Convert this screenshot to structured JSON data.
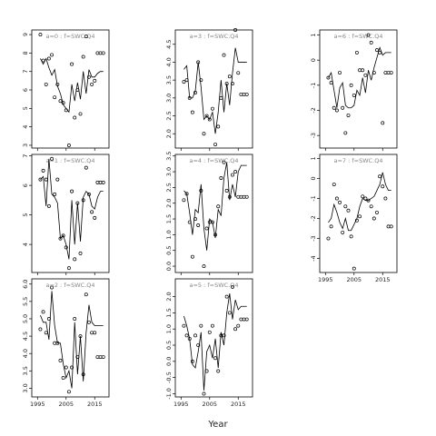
{
  "chart_data": {
    "type": "line",
    "xlabel": "Year",
    "ylabel": "",
    "colors": {
      "line": "#000000",
      "point": "#000000",
      "frame": "#000000",
      "title": "#888888"
    },
    "marker": "open-circle",
    "xlim": [
      1993,
      2020
    ],
    "xticks": [
      1995,
      2005,
      2015
    ],
    "xtick_labels": [
      "1995",
      "2005",
      "2015"
    ],
    "panels": [
      {
        "title": "a=0 : f=SWC.Q4",
        "ylim": [
          2.85,
          9.25
        ],
        "yticks": [
          3,
          4,
          5,
          6,
          7,
          8,
          9
        ],
        "ytick_labels": [
          "3",
          "4",
          "5",
          "6",
          "7",
          "8",
          "9"
        ],
        "line_x": [
          1996,
          1997,
          1998,
          1999,
          2000,
          2001,
          2002,
          2003,
          2004,
          2005,
          2006,
          2007,
          2008,
          2009,
          2010,
          2011,
          2012,
          2013,
          2014,
          2015,
          2016,
          2017,
          2018
        ],
        "line_y": [
          7.7,
          7.4,
          7.7,
          7.2,
          6.8,
          7.1,
          6.2,
          5.8,
          5.2,
          5.0,
          4.8,
          6.3,
          5.4,
          6.4,
          5.5,
          7.0,
          5.8,
          7.1,
          6.7,
          6.7,
          6.9,
          7.0,
          7.0
        ],
        "points_x": [
          1996,
          1997,
          1998,
          1999,
          2000,
          2001,
          2002,
          2003,
          2004,
          2005,
          2006,
          2007,
          2008,
          2009,
          2010,
          2011,
          2012,
          2013,
          2014,
          2015,
          2016,
          2017,
          2018
        ],
        "points_y": [
          9.0,
          7.6,
          6.3,
          7.7,
          7.9,
          5.6,
          6.3,
          5.4,
          5.3,
          4.9,
          3.0,
          7.4,
          4.5,
          6.0,
          4.7,
          7.8,
          8.9,
          6.7,
          6.3,
          6.5,
          8.0,
          8.0,
          8.0
        ]
      },
      {
        "title": "a=1 : f=SWC.Q4",
        "ylim": [
          3.05,
          7.05
        ],
        "yticks": [
          4,
          5,
          6,
          7
        ],
        "ytick_labels": [
          "4",
          "5",
          "6",
          "7"
        ],
        "line_x": [
          1996,
          1997,
          1998,
          1999,
          2000,
          2001,
          2002,
          2003,
          2004,
          2005,
          2006,
          2007,
          2008,
          2009,
          2010,
          2011,
          2012,
          2013,
          2014,
          2015,
          2016,
          2017,
          2018
        ],
        "line_y": [
          6.2,
          6.3,
          5.3,
          6.9,
          5.7,
          5.6,
          5.4,
          4.2,
          4.3,
          4.0,
          3.5,
          5.5,
          4.0,
          5.4,
          4.1,
          5.6,
          5.8,
          5.7,
          5.3,
          5.2,
          5.6,
          5.8,
          5.8
        ],
        "points_x": [
          1996,
          1997,
          1998,
          1999,
          2000,
          2001,
          2002,
          2003,
          2004,
          2005,
          2006,
          2007,
          2008,
          2009,
          2010,
          2011,
          2012,
          2013,
          2014,
          2015,
          2016,
          2017,
          2018
        ],
        "points_y": [
          6.2,
          6.5,
          6.2,
          5.3,
          6.9,
          5.7,
          6.2,
          4.2,
          4.3,
          3.9,
          3.2,
          5.8,
          3.5,
          5.4,
          3.7,
          5.5,
          6.6,
          5.7,
          5.1,
          4.9,
          6.1,
          6.1,
          6.1
        ]
      },
      {
        "title": "a=2 : f=SWC.Q4",
        "ylim": [
          2.75,
          6.15
        ],
        "yticks": [
          3.0,
          3.5,
          4.0,
          4.5,
          5.0,
          5.5,
          6.0
        ],
        "ytick_labels": [
          "3.0",
          "3.5",
          "4.0",
          "4.5",
          "5.0",
          "5.5",
          "6.0"
        ],
        "line_x": [
          1996,
          1997,
          1998,
          1999,
          2000,
          2001,
          2002,
          2003,
          2004,
          2005,
          2006,
          2007,
          2008,
          2009,
          2010,
          2011,
          2012,
          2013,
          2014,
          2015,
          2016,
          2017,
          2018
        ],
        "line_y": [
          5.1,
          4.9,
          4.9,
          4.4,
          5.8,
          4.8,
          4.3,
          4.3,
          3.7,
          3.3,
          3.5,
          3.0,
          4.9,
          3.4,
          4.5,
          3.2,
          4.6,
          5.4,
          4.9,
          4.8,
          4.8,
          4.8,
          4.8
        ],
        "points_x": [
          1996,
          1997,
          1998,
          1999,
          2000,
          2001,
          2002,
          2003,
          2004,
          2005,
          2006,
          2007,
          2008,
          2009,
          2010,
          2011,
          2012,
          2013,
          2014,
          2015,
          2016,
          2017,
          2018
        ],
        "points_y": [
          4.7,
          5.2,
          4.6,
          5.0,
          5.9,
          4.3,
          4.3,
          3.8,
          3.3,
          3.6,
          2.9,
          3.6,
          5.0,
          3.9,
          4.5,
          3.4,
          5.7,
          4.9,
          4.6,
          4.6,
          3.9,
          3.9,
          3.9
        ]
      },
      {
        "title": "a=3 : f=SWC.Q4",
        "ylim": [
          1.6,
          4.9
        ],
        "yticks": [
          2.0,
          2.5,
          3.0,
          3.5,
          4.0,
          4.5
        ],
        "ytick_labels": [
          "2.0",
          "2.5",
          "3.0",
          "3.5",
          "4.0",
          "4.5"
        ],
        "line_x": [
          1996,
          1997,
          1998,
          1999,
          2000,
          2001,
          2002,
          2003,
          2004,
          2005,
          2006,
          2007,
          2008,
          2009,
          2010,
          2011,
          2012,
          2013,
          2014,
          2015,
          2016,
          2017,
          2018
        ],
        "line_y": [
          3.8,
          3.9,
          3.0,
          3.0,
          3.2,
          4.0,
          3.3,
          2.4,
          2.5,
          2.4,
          2.6,
          2.0,
          2.6,
          3.5,
          2.6,
          3.4,
          2.8,
          3.7,
          4.4,
          4.0,
          4.0,
          4.0,
          4.0
        ],
        "points_x": [
          1996,
          1997,
          1998,
          1999,
          2000,
          2001,
          2002,
          2003,
          2004,
          2005,
          2006,
          2007,
          2008,
          2009,
          2010,
          2011,
          2012,
          2013,
          2014,
          2015,
          2016,
          2017,
          2018
        ],
        "points_y": [
          3.45,
          3.5,
          3.0,
          2.6,
          3.15,
          4.0,
          3.5,
          2.0,
          2.5,
          2.4,
          2.7,
          1.7,
          2.2,
          3.0,
          4.2,
          3.4,
          3.6,
          3.4,
          4.9,
          3.7,
          3.1,
          3.1,
          3.1
        ]
      },
      {
        "title": "a=4 : f=SWC.Q4",
        "ylim": [
          -0.2,
          3.55
        ],
        "yticks": [
          0.0,
          0.5,
          1.0,
          1.5,
          2.0,
          2.5,
          3.0,
          3.5
        ],
        "ytick_labels": [
          "0.0",
          "0.5",
          "1.0",
          "1.5",
          "2.0",
          "2.5",
          "3.0",
          "3.5"
        ],
        "line_x": [
          1996,
          1997,
          1998,
          1999,
          2000,
          2001,
          2002,
          2003,
          2004,
          2005,
          2006,
          2007,
          2008,
          2009,
          2010,
          2011,
          2012,
          2013,
          2014,
          2015,
          2016,
          2017,
          2018
        ],
        "line_y": [
          2.4,
          2.3,
          1.7,
          1.0,
          1.8,
          1.7,
          2.6,
          1.2,
          0.5,
          1.5,
          1.4,
          0.9,
          1.8,
          1.6,
          2.8,
          3.3,
          2.1,
          2.6,
          2.2,
          3.0,
          3.2,
          3.2,
          3.2
        ],
        "points_x": [
          1996,
          1997,
          1998,
          1999,
          2000,
          2001,
          2002,
          2003,
          2004,
          2005,
          2006,
          2007,
          2008,
          2009,
          2010,
          2011,
          2012,
          2013,
          2014,
          2015,
          2016,
          2017,
          2018
        ],
        "points_y": [
          2.1,
          2.3,
          1.4,
          0.3,
          1.5,
          1.3,
          2.4,
          0.0,
          1.2,
          1.4,
          1.4,
          1.0,
          1.9,
          2.8,
          3.3,
          2.4,
          2.2,
          2.9,
          3.0,
          2.2,
          2.2,
          2.2,
          2.2
        ]
      },
      {
        "title": "a=5 : f=SWC.Q4",
        "ylim": [
          -1.1,
          2.55
        ],
        "yticks": [
          -1.0,
          -0.5,
          0.0,
          0.5,
          1.0,
          1.5,
          2.0
        ],
        "ytick_labels": [
          "-1.0",
          "-0.5",
          "0.0",
          "0.5",
          "1.0",
          "1.5",
          "2.0"
        ],
        "line_x": [
          1996,
          1997,
          1998,
          1999,
          2000,
          2001,
          2002,
          2003,
          2004,
          2005,
          2006,
          2007,
          2008,
          2009,
          2010,
          2011,
          2012,
          2013,
          2014,
          2015,
          2016,
          2017,
          2018
        ],
        "line_y": [
          1.4,
          1.1,
          0.7,
          -0.1,
          -0.2,
          0.3,
          0.9,
          -0.9,
          0.3,
          0.5,
          0.1,
          0.7,
          -0.2,
          0.9,
          0.5,
          1.5,
          2.1,
          1.3,
          1.9,
          1.6,
          1.7,
          1.7,
          1.7
        ],
        "points_x": [
          1996,
          1997,
          1998,
          1999,
          2000,
          2001,
          2002,
          2003,
          2004,
          2005,
          2006,
          2007,
          2008,
          2009,
          2010,
          2011,
          2012,
          2013,
          2014,
          2015,
          2016,
          2017,
          2018
        ],
        "points_y": [
          1.1,
          0.8,
          0.7,
          0.0,
          0.8,
          0.5,
          1.1,
          -1.0,
          -0.3,
          0.9,
          1.1,
          0.1,
          -0.3,
          0.8,
          0.8,
          2.0,
          1.5,
          2.3,
          1.0,
          1.1,
          1.3,
          1.3,
          1.3
        ]
      },
      {
        "title": "a=6 : f=SWC.Q4",
        "ylim": [
          -3.5,
          1.2
        ],
        "yticks": [
          -3,
          -2,
          -1,
          0,
          1
        ],
        "ytick_labels": [
          "-3",
          "-2",
          "-1",
          "0",
          "1"
        ],
        "line_x": [
          1996,
          1997,
          1998,
          1999,
          2000,
          2001,
          2002,
          2003,
          2004,
          2005,
          2006,
          2007,
          2008,
          2009,
          2010,
          2011,
          2012,
          2013,
          2014,
          2015,
          2016,
          2017,
          2018
        ],
        "line_y": [
          -0.7,
          -0.5,
          -1.2,
          -1.9,
          -1.1,
          -0.9,
          -1.8,
          -1.9,
          -1.9,
          -1.8,
          -1.2,
          -1.4,
          -0.7,
          -1.3,
          -0.4,
          -0.8,
          -0.3,
          0.1,
          0.5,
          0.2,
          0.3,
          0.3,
          0.3
        ],
        "points_x": [
          1996,
          1997,
          1998,
          1999,
          2000,
          2001,
          2002,
          2003,
          2004,
          2005,
          2006,
          2007,
          2008,
          2009,
          2010,
          2011,
          2012,
          2013,
          2014,
          2015,
          2016,
          2017,
          2018
        ],
        "points_y": [
          -0.7,
          -0.9,
          -1.9,
          -2.0,
          -0.5,
          -1.9,
          -2.9,
          -2.2,
          -1.0,
          -1.4,
          0.3,
          -0.4,
          -0.4,
          -0.6,
          1.0,
          0.7,
          -0.5,
          0.4,
          0.3,
          -2.5,
          -0.5,
          -0.5,
          -0.5
        ]
      },
      {
        "title": "a=7 : f=SWC.Q4",
        "ylim": [
          -4.7,
          1.2
        ],
        "yticks": [
          -4,
          -3,
          -2,
          -1,
          0,
          1
        ],
        "ytick_labels": [
          "-4",
          "-3",
          "-2",
          "-1",
          "0",
          "1"
        ],
        "line_x": [
          1996,
          1997,
          1998,
          1999,
          2000,
          2001,
          2002,
          2003,
          2004,
          2005,
          2006,
          2007,
          2008,
          2009,
          2010,
          2011,
          2012,
          2013,
          2014,
          2015,
          2016,
          2017,
          2018
        ],
        "line_y": [
          -2.2,
          -2.0,
          -1.3,
          -1.7,
          -2.2,
          -2.5,
          -2.0,
          -2.6,
          -2.6,
          -2.3,
          -2.0,
          -1.4,
          -1.0,
          -1.1,
          -1.1,
          -1.0,
          -0.9,
          -0.6,
          -0.3,
          0.3,
          -0.3,
          -0.6,
          -0.6
        ],
        "points_x": [
          1996,
          1997,
          1998,
          1999,
          2000,
          2001,
          2002,
          2003,
          2004,
          2005,
          2006,
          2007,
          2008,
          2009,
          2010,
          2011,
          2012,
          2013,
          2014,
          2015,
          2016,
          2017,
          2018
        ],
        "points_y": [
          -3.0,
          -2.4,
          -0.3,
          -1.0,
          -1.2,
          -2.7,
          -1.4,
          -1.6,
          -2.9,
          -4.5,
          -2.1,
          -1.9,
          -0.9,
          -1.0,
          -1.1,
          -1.4,
          -2.0,
          -1.7,
          0.1,
          -0.4,
          -1.0,
          -2.4,
          -2.4
        ]
      }
    ]
  }
}
